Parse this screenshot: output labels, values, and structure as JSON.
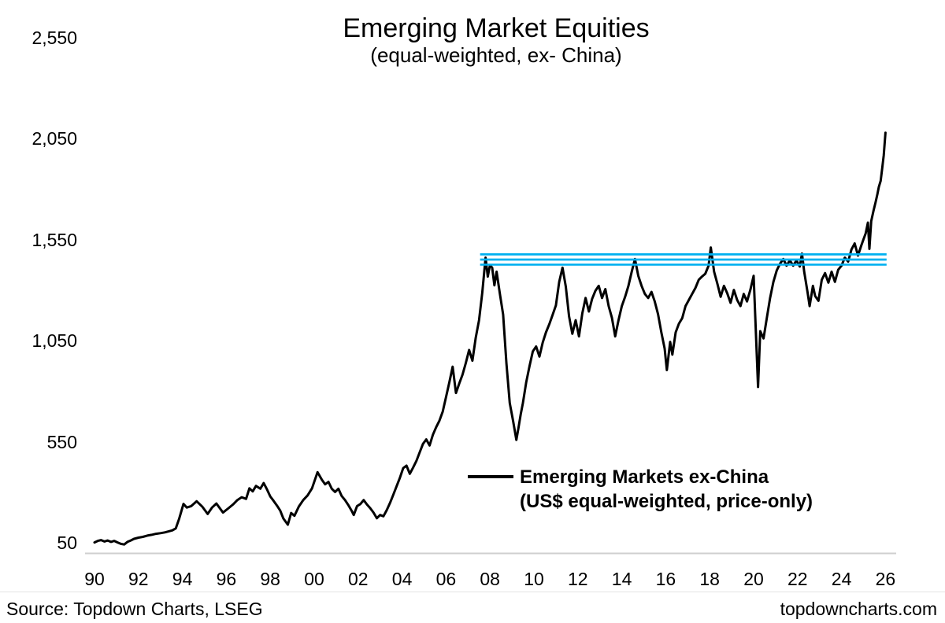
{
  "page": {
    "title": "Emerging Market Equities",
    "subtitle": "(equal-weighted, ex- China)",
    "source": "Source: Topdown Charts, LSEG",
    "website": "topdowncharts.com"
  },
  "legend": {
    "line1": "Emerging Markets ex-China",
    "line2": "(US$ equal-weighted, price-only)"
  },
  "colors": {
    "series": "#000000",
    "resistance": "#00B0F0",
    "axis_line": "#cfcfcf",
    "footer_rule": "#e3e3e3",
    "text": "#000000"
  },
  "chart_data": {
    "type": "line",
    "title": "Emerging Market Equities",
    "subtitle": "(equal-weighted, ex- China)",
    "xlabel": "",
    "ylabel": "",
    "grid": false,
    "legend_position": "inside-lower-right",
    "x_axis": {
      "tick_labels": [
        "90",
        "92",
        "94",
        "96",
        "98",
        "00",
        "02",
        "04",
        "06",
        "08",
        "10",
        "12",
        "14",
        "16",
        "18",
        "20",
        "22",
        "24",
        "26"
      ],
      "tick_years": [
        1990,
        1992,
        1994,
        1996,
        1998,
        2000,
        2002,
        2004,
        2006,
        2008,
        2010,
        2012,
        2014,
        2016,
        2018,
        2020,
        2022,
        2024,
        2026
      ],
      "range": [
        1989.6,
        2026.6
      ]
    },
    "y_axis": {
      "tick_labels": [
        "2,550",
        "2,050",
        "1,550",
        "1,050",
        "550",
        "50"
      ],
      "tick_values": [
        2550,
        2050,
        1550,
        1050,
        550,
        50
      ],
      "range": [
        0,
        2550
      ]
    },
    "resistance_lines": {
      "description": "three parallel horizontal resistance lines",
      "values": [
        1478,
        1452,
        1427
      ],
      "x_range": [
        2007.55,
        2026.05
      ],
      "color": "#00B0F0"
    },
    "series": [
      {
        "name": "Emerging Markets ex-China (US$ equal-weighted, price-only)",
        "color": "#000000",
        "points": [
          [
            1990.0,
            52
          ],
          [
            1990.15,
            60
          ],
          [
            1990.3,
            64
          ],
          [
            1990.45,
            57
          ],
          [
            1990.6,
            62
          ],
          [
            1990.75,
            55
          ],
          [
            1990.9,
            60
          ],
          [
            1991.05,
            52
          ],
          [
            1991.2,
            45
          ],
          [
            1991.35,
            42
          ],
          [
            1991.5,
            55
          ],
          [
            1991.65,
            62
          ],
          [
            1991.8,
            70
          ],
          [
            1992.0,
            76
          ],
          [
            1992.2,
            80
          ],
          [
            1992.4,
            86
          ],
          [
            1992.6,
            90
          ],
          [
            1992.8,
            95
          ],
          [
            1993.0,
            98
          ],
          [
            1993.2,
            102
          ],
          [
            1993.4,
            108
          ],
          [
            1993.55,
            112
          ],
          [
            1993.7,
            122
          ],
          [
            1993.85,
            168
          ],
          [
            1994.05,
            243
          ],
          [
            1994.2,
            225
          ],
          [
            1994.4,
            232
          ],
          [
            1994.65,
            256
          ],
          [
            1994.9,
            230
          ],
          [
            1995.15,
            193
          ],
          [
            1995.35,
            225
          ],
          [
            1995.55,
            245
          ],
          [
            1995.85,
            200
          ],
          [
            1996.1,
            222
          ],
          [
            1996.3,
            240
          ],
          [
            1996.5,
            262
          ],
          [
            1996.7,
            276
          ],
          [
            1996.9,
            268
          ],
          [
            1997.05,
            320
          ],
          [
            1997.2,
            305
          ],
          [
            1997.35,
            332
          ],
          [
            1997.55,
            318
          ],
          [
            1997.7,
            346
          ],
          [
            1997.85,
            315
          ],
          [
            1998.0,
            280
          ],
          [
            1998.15,
            258
          ],
          [
            1998.3,
            235
          ],
          [
            1998.45,
            210
          ],
          [
            1998.6,
            170
          ],
          [
            1998.8,
            140
          ],
          [
            1998.95,
            198
          ],
          [
            1999.1,
            184
          ],
          [
            1999.3,
            230
          ],
          [
            1999.5,
            262
          ],
          [
            1999.7,
            285
          ],
          [
            1999.9,
            320
          ],
          [
            2000.15,
            400
          ],
          [
            2000.35,
            362
          ],
          [
            2000.5,
            340
          ],
          [
            2000.65,
            352
          ],
          [
            2000.8,
            318
          ],
          [
            2000.95,
            302
          ],
          [
            2001.1,
            318
          ],
          [
            2001.25,
            282
          ],
          [
            2001.4,
            262
          ],
          [
            2001.55,
            238
          ],
          [
            2001.7,
            210
          ],
          [
            2001.8,
            188
          ],
          [
            2001.95,
            232
          ],
          [
            2002.1,
            242
          ],
          [
            2002.25,
            262
          ],
          [
            2002.4,
            240
          ],
          [
            2002.55,
            222
          ],
          [
            2002.7,
            200
          ],
          [
            2002.85,
            172
          ],
          [
            2003.0,
            188
          ],
          [
            2003.15,
            182
          ],
          [
            2003.3,
            212
          ],
          [
            2003.45,
            248
          ],
          [
            2003.6,
            288
          ],
          [
            2003.75,
            330
          ],
          [
            2003.9,
            372
          ],
          [
            2004.05,
            420
          ],
          [
            2004.2,
            432
          ],
          [
            2004.35,
            392
          ],
          [
            2004.5,
            422
          ],
          [
            2004.65,
            455
          ],
          [
            2004.8,
            498
          ],
          [
            2004.95,
            540
          ],
          [
            2005.1,
            562
          ],
          [
            2005.25,
            532
          ],
          [
            2005.4,
            585
          ],
          [
            2005.55,
            622
          ],
          [
            2005.7,
            655
          ],
          [
            2005.85,
            700
          ],
          [
            2006.0,
            772
          ],
          [
            2006.15,
            845
          ],
          [
            2006.3,
            922
          ],
          [
            2006.45,
            792
          ],
          [
            2006.6,
            838
          ],
          [
            2006.75,
            882
          ],
          [
            2006.9,
            940
          ],
          [
            2007.05,
            1005
          ],
          [
            2007.2,
            952
          ],
          [
            2007.35,
            1065
          ],
          [
            2007.5,
            1152
          ],
          [
            2007.65,
            1288
          ],
          [
            2007.8,
            1462
          ],
          [
            2007.9,
            1368
          ],
          [
            2008.0,
            1425
          ],
          [
            2008.1,
            1412
          ],
          [
            2008.2,
            1325
          ],
          [
            2008.3,
            1392
          ],
          [
            2008.45,
            1282
          ],
          [
            2008.6,
            1180
          ],
          [
            2008.75,
            938
          ],
          [
            2008.9,
            742
          ],
          [
            2009.05,
            655
          ],
          [
            2009.2,
            560
          ],
          [
            2009.3,
            622
          ],
          [
            2009.4,
            688
          ],
          [
            2009.5,
            742
          ],
          [
            2009.65,
            845
          ],
          [
            2009.8,
            925
          ],
          [
            2009.95,
            998
          ],
          [
            2010.1,
            1022
          ],
          [
            2010.25,
            972
          ],
          [
            2010.4,
            1042
          ],
          [
            2010.55,
            1092
          ],
          [
            2010.7,
            1132
          ],
          [
            2010.85,
            1178
          ],
          [
            2011.0,
            1225
          ],
          [
            2011.15,
            1342
          ],
          [
            2011.3,
            1412
          ],
          [
            2011.45,
            1318
          ],
          [
            2011.6,
            1172
          ],
          [
            2011.75,
            1085
          ],
          [
            2011.9,
            1152
          ],
          [
            2012.05,
            1072
          ],
          [
            2012.2,
            1185
          ],
          [
            2012.35,
            1262
          ],
          [
            2012.5,
            1195
          ],
          [
            2012.65,
            1258
          ],
          [
            2012.8,
            1298
          ],
          [
            2012.95,
            1322
          ],
          [
            2013.1,
            1262
          ],
          [
            2013.25,
            1306
          ],
          [
            2013.4,
            1222
          ],
          [
            2013.55,
            1165
          ],
          [
            2013.7,
            1072
          ],
          [
            2013.85,
            1152
          ],
          [
            2014.0,
            1222
          ],
          [
            2014.15,
            1268
          ],
          [
            2014.3,
            1322
          ],
          [
            2014.45,
            1392
          ],
          [
            2014.6,
            1455
          ],
          [
            2014.75,
            1372
          ],
          [
            2014.9,
            1322
          ],
          [
            2015.05,
            1282
          ],
          [
            2015.2,
            1262
          ],
          [
            2015.35,
            1292
          ],
          [
            2015.5,
            1245
          ],
          [
            2015.65,
            1182
          ],
          [
            2015.8,
            1092
          ],
          [
            2015.95,
            1012
          ],
          [
            2016.05,
            905
          ],
          [
            2016.2,
            1045
          ],
          [
            2016.3,
            982
          ],
          [
            2016.45,
            1092
          ],
          [
            2016.6,
            1135
          ],
          [
            2016.75,
            1162
          ],
          [
            2016.9,
            1222
          ],
          [
            2017.05,
            1252
          ],
          [
            2017.2,
            1282
          ],
          [
            2017.35,
            1312
          ],
          [
            2017.5,
            1352
          ],
          [
            2017.65,
            1368
          ],
          [
            2017.8,
            1382
          ],
          [
            2017.95,
            1422
          ],
          [
            2018.05,
            1512
          ],
          [
            2018.2,
            1392
          ],
          [
            2018.35,
            1332
          ],
          [
            2018.5,
            1268
          ],
          [
            2018.65,
            1322
          ],
          [
            2018.8,
            1285
          ],
          [
            2018.95,
            1238
          ],
          [
            2019.1,
            1302
          ],
          [
            2019.25,
            1252
          ],
          [
            2019.4,
            1222
          ],
          [
            2019.55,
            1282
          ],
          [
            2019.7,
            1245
          ],
          [
            2019.85,
            1302
          ],
          [
            2020.0,
            1372
          ],
          [
            2020.2,
            822
          ],
          [
            2020.3,
            1098
          ],
          [
            2020.45,
            1062
          ],
          [
            2020.6,
            1162
          ],
          [
            2020.75,
            1262
          ],
          [
            2020.9,
            1342
          ],
          [
            2021.05,
            1398
          ],
          [
            2021.2,
            1432
          ],
          [
            2021.35,
            1455
          ],
          [
            2021.5,
            1422
          ],
          [
            2021.65,
            1448
          ],
          [
            2021.8,
            1422
          ],
          [
            2021.95,
            1448
          ],
          [
            2022.1,
            1418
          ],
          [
            2022.2,
            1482
          ],
          [
            2022.3,
            1392
          ],
          [
            2022.45,
            1292
          ],
          [
            2022.55,
            1222
          ],
          [
            2022.7,
            1322
          ],
          [
            2022.8,
            1272
          ],
          [
            2022.95,
            1248
          ],
          [
            2023.1,
            1352
          ],
          [
            2023.25,
            1385
          ],
          [
            2023.4,
            1338
          ],
          [
            2023.55,
            1392
          ],
          [
            2023.7,
            1342
          ],
          [
            2023.85,
            1402
          ],
          [
            2024.0,
            1422
          ],
          [
            2024.15,
            1462
          ],
          [
            2024.3,
            1442
          ],
          [
            2024.45,
            1502
          ],
          [
            2024.6,
            1532
          ],
          [
            2024.75,
            1472
          ],
          [
            2024.9,
            1522
          ],
          [
            2025.0,
            1552
          ],
          [
            2025.1,
            1582
          ],
          [
            2025.2,
            1635
          ],
          [
            2025.27,
            1505
          ],
          [
            2025.35,
            1642
          ],
          [
            2025.45,
            1692
          ],
          [
            2025.55,
            1735
          ],
          [
            2025.63,
            1775
          ],
          [
            2025.7,
            1812
          ],
          [
            2025.78,
            1842
          ],
          [
            2025.85,
            1902
          ],
          [
            2025.92,
            1968
          ],
          [
            2026.0,
            2080
          ]
        ]
      }
    ]
  }
}
